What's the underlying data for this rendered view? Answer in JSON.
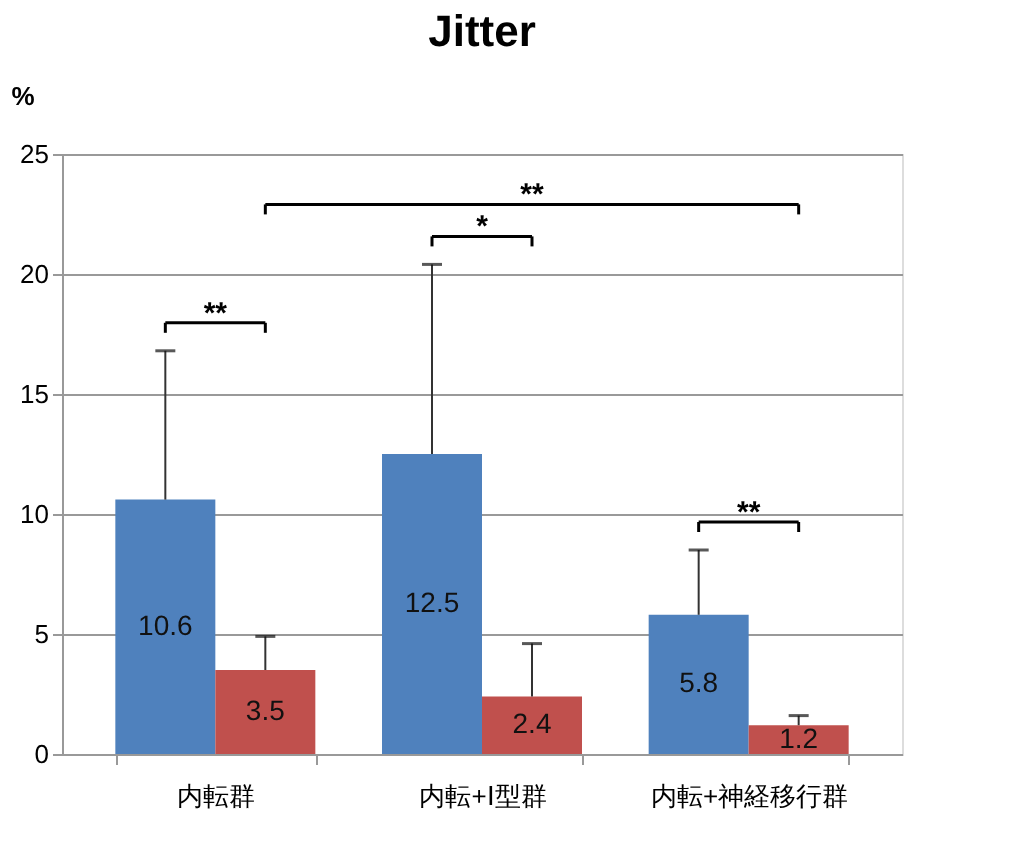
{
  "chart_data": {
    "type": "bar",
    "title": "Jitter",
    "ylabel": "%",
    "categories": [
      "内転群",
      "内転+Ⅰ型群",
      "内転+神経移行群"
    ],
    "series": [
      {
        "color": "#4f81bd",
        "values": [
          10.6,
          12.5,
          5.8
        ],
        "errors": [
          [
            10.6,
            16.8
          ],
          [
            12.5,
            20.4
          ],
          [
            5.8,
            8.5
          ]
        ]
      },
      {
        "color": "#c0504d",
        "values": [
          3.5,
          2.4,
          1.2
        ],
        "errors": [
          [
            3.5,
            4.9
          ],
          [
            2.4,
            4.6
          ],
          [
            1.2,
            1.6
          ]
        ]
      }
    ],
    "data_labels": true,
    "ylim": [
      0,
      25
    ],
    "yticks": [
      0,
      5,
      10,
      15,
      20,
      25
    ],
    "grid": "y",
    "legend": false,
    "annotations": [
      "**",
      "*",
      "**",
      "**"
    ]
  }
}
